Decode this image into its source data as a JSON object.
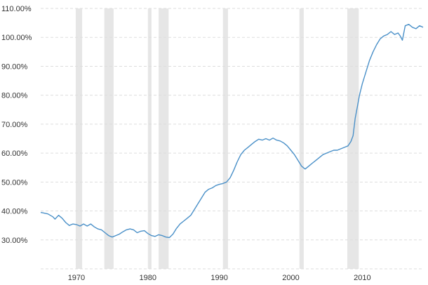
{
  "chart_data": {
    "type": "line",
    "title": "",
    "xlabel": "",
    "ylabel": "",
    "xlim": [
      1965,
      2018.5
    ],
    "ylim": [
      20,
      110
    ],
    "grid": true,
    "legend": "none",
    "x_ticks": [
      {
        "value": 1970,
        "label": "1970"
      },
      {
        "value": 1980,
        "label": "1980"
      },
      {
        "value": 1990,
        "label": "1990"
      },
      {
        "value": 2000,
        "label": "2000"
      },
      {
        "value": 2010,
        "label": "2010"
      }
    ],
    "y_ticks": [
      {
        "value": 30,
        "label": "30.00%"
      },
      {
        "value": 40,
        "label": "40.00%"
      },
      {
        "value": 50,
        "label": "50.00%"
      },
      {
        "value": 60,
        "label": "60.00%"
      },
      {
        "value": 70,
        "label": "70.00%"
      },
      {
        "value": 80,
        "label": "80.00%"
      },
      {
        "value": 90,
        "label": "90.00%"
      },
      {
        "value": 100,
        "label": "100.00%"
      },
      {
        "value": 110,
        "label": "110.00%"
      }
    ],
    "recessions": [
      [
        1969.9,
        1970.8
      ],
      [
        1973.9,
        1975.2
      ],
      [
        1980.0,
        1980.5
      ],
      [
        1981.5,
        1982.9
      ],
      [
        1990.5,
        1991.2
      ],
      [
        2001.2,
        2001.8
      ],
      [
        2007.9,
        2009.5
      ]
    ],
    "colors": {
      "line": "#4a90c8",
      "recession": "#e6e6e6",
      "grid": "#dddddd"
    },
    "series": [
      {
        "values": [
          [
            1965.0,
            39.5
          ],
          [
            1966.0,
            39.0
          ],
          [
            1966.7,
            38.0
          ],
          [
            1967.0,
            37.2
          ],
          [
            1967.5,
            38.5
          ],
          [
            1968.0,
            37.5
          ],
          [
            1968.5,
            36.0
          ],
          [
            1969.0,
            35.0
          ],
          [
            1969.5,
            35.5
          ],
          [
            1970.0,
            35.3
          ],
          [
            1970.5,
            34.8
          ],
          [
            1971.0,
            35.5
          ],
          [
            1971.5,
            34.8
          ],
          [
            1972.0,
            35.5
          ],
          [
            1972.5,
            34.5
          ],
          [
            1973.0,
            33.8
          ],
          [
            1973.5,
            33.5
          ],
          [
            1974.0,
            32.5
          ],
          [
            1974.5,
            31.5
          ],
          [
            1975.0,
            31.0
          ],
          [
            1975.5,
            31.5
          ],
          [
            1976.0,
            32.0
          ],
          [
            1976.5,
            32.8
          ],
          [
            1977.0,
            33.5
          ],
          [
            1977.5,
            33.8
          ],
          [
            1978.0,
            33.5
          ],
          [
            1978.5,
            32.5
          ],
          [
            1979.0,
            33.0
          ],
          [
            1979.5,
            33.2
          ],
          [
            1980.0,
            32.2
          ],
          [
            1980.5,
            31.5
          ],
          [
            1981.0,
            31.2
          ],
          [
            1981.5,
            31.8
          ],
          [
            1982.0,
            31.5
          ],
          [
            1982.5,
            31.0
          ],
          [
            1983.0,
            30.8
          ],
          [
            1983.5,
            32.0
          ],
          [
            1984.0,
            34.0
          ],
          [
            1984.5,
            35.5
          ],
          [
            1985.0,
            36.5
          ],
          [
            1985.5,
            37.5
          ],
          [
            1986.0,
            38.5
          ],
          [
            1986.5,
            40.5
          ],
          [
            1987.0,
            42.5
          ],
          [
            1987.5,
            44.5
          ],
          [
            1988.0,
            46.5
          ],
          [
            1988.5,
            47.5
          ],
          [
            1989.0,
            48.0
          ],
          [
            1989.5,
            48.8
          ],
          [
            1990.0,
            49.2
          ],
          [
            1990.5,
            49.5
          ],
          [
            1991.0,
            50.0
          ],
          [
            1991.5,
            51.5
          ],
          [
            1992.0,
            54.0
          ],
          [
            1992.5,
            57.0
          ],
          [
            1993.0,
            59.5
          ],
          [
            1993.5,
            61.0
          ],
          [
            1994.0,
            62.0
          ],
          [
            1994.5,
            63.0
          ],
          [
            1995.0,
            64.0
          ],
          [
            1995.5,
            64.8
          ],
          [
            1996.0,
            64.5
          ],
          [
            1996.5,
            65.0
          ],
          [
            1997.0,
            64.5
          ],
          [
            1997.5,
            65.2
          ],
          [
            1998.0,
            64.5
          ],
          [
            1998.5,
            64.2
          ],
          [
            1999.0,
            63.5
          ],
          [
            1999.5,
            62.5
          ],
          [
            2000.0,
            61.0
          ],
          [
            2000.5,
            59.5
          ],
          [
            2001.0,
            57.5
          ],
          [
            2001.5,
            55.5
          ],
          [
            2002.0,
            54.5
          ],
          [
            2002.5,
            55.5
          ],
          [
            2003.0,
            56.5
          ],
          [
            2003.5,
            57.5
          ],
          [
            2004.0,
            58.5
          ],
          [
            2004.5,
            59.5
          ],
          [
            2005.0,
            60.0
          ],
          [
            2005.5,
            60.5
          ],
          [
            2006.0,
            61.0
          ],
          [
            2006.5,
            61.0
          ],
          [
            2007.0,
            61.5
          ],
          [
            2007.5,
            62.0
          ],
          [
            2008.0,
            62.5
          ],
          [
            2008.4,
            64.0
          ],
          [
            2008.7,
            66.0
          ],
          [
            2009.0,
            72.0
          ],
          [
            2009.3,
            76.0
          ],
          [
            2009.6,
            80.0
          ],
          [
            2010.0,
            84.0
          ],
          [
            2010.5,
            88.0
          ],
          [
            2011.0,
            92.0
          ],
          [
            2011.5,
            95.0
          ],
          [
            2012.0,
            97.5
          ],
          [
            2012.5,
            99.5
          ],
          [
            2013.0,
            100.5
          ],
          [
            2013.5,
            101.0
          ],
          [
            2014.0,
            102.0
          ],
          [
            2014.5,
            101.0
          ],
          [
            2015.0,
            101.5
          ],
          [
            2015.3,
            100.5
          ],
          [
            2015.6,
            99.0
          ],
          [
            2016.0,
            104.0
          ],
          [
            2016.5,
            104.5
          ],
          [
            2017.0,
            103.5
          ],
          [
            2017.5,
            103.0
          ],
          [
            2018.0,
            104.0
          ],
          [
            2018.5,
            103.5
          ]
        ]
      }
    ]
  }
}
